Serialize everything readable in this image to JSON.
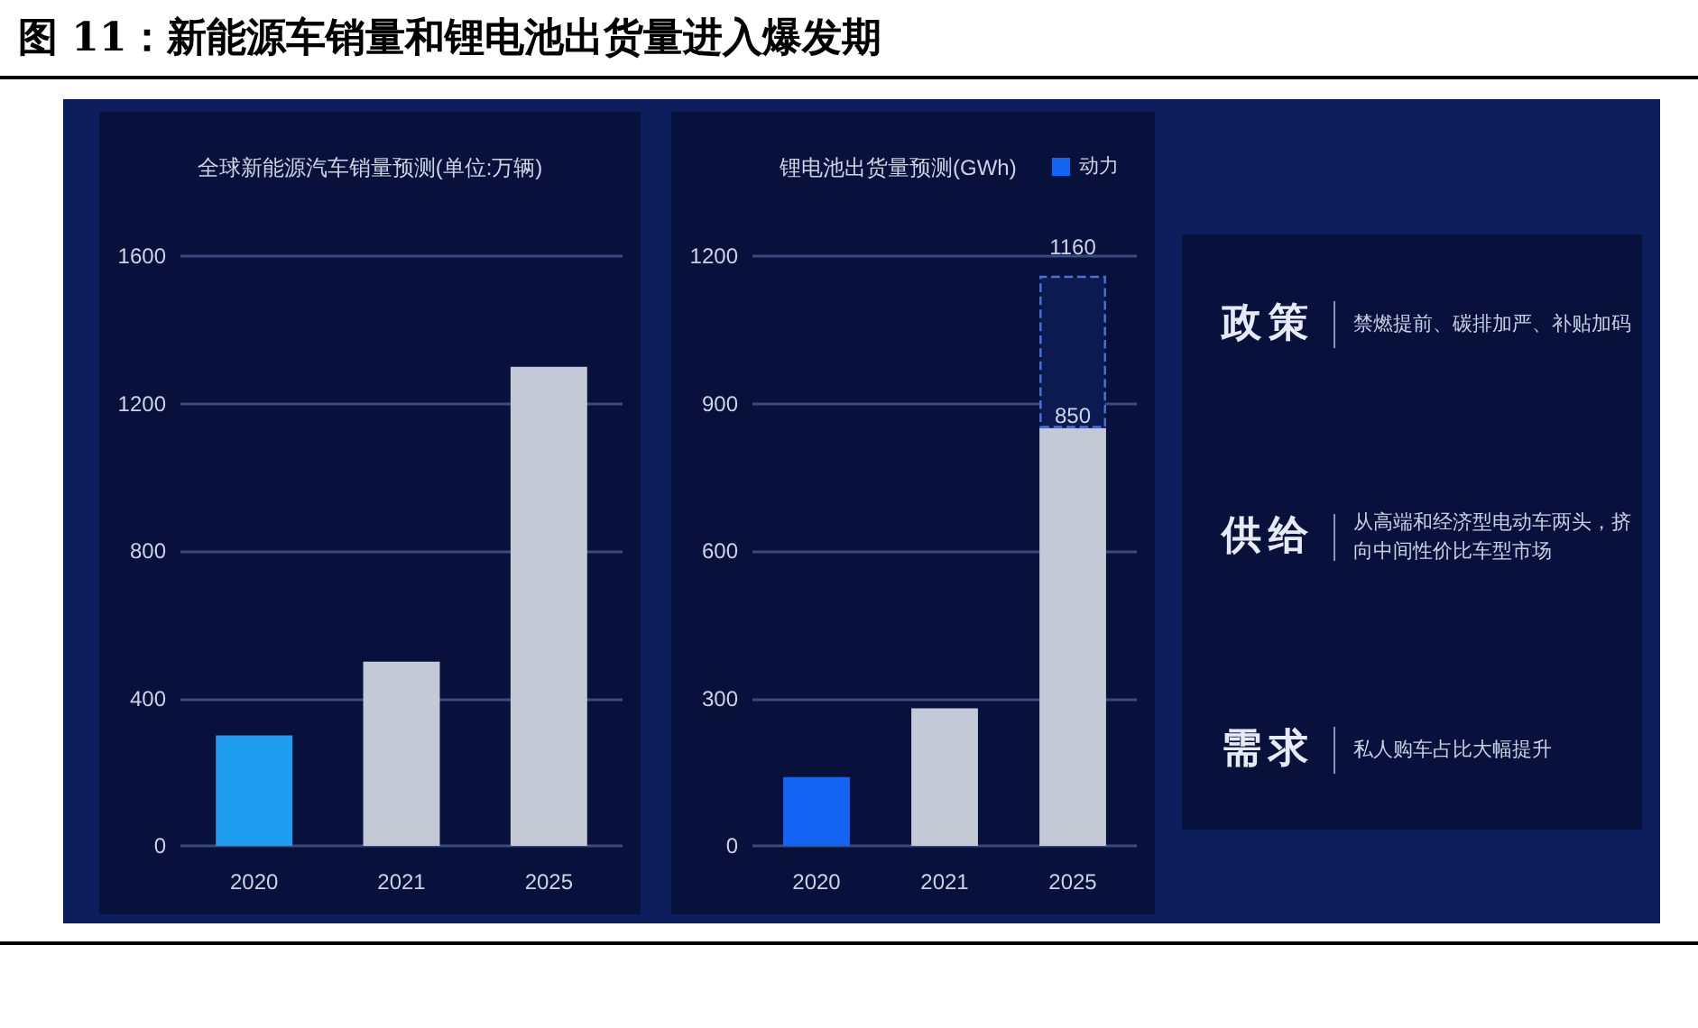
{
  "chart_data": [
    {
      "type": "bar",
      "title": "图 11：新能源车销量和锂电池出货量进入爆发期",
      "subtitle": "全球新能源汽车销量预测(单位:万辆)",
      "categories": [
        "2020",
        "2021",
        "2025"
      ],
      "values": [
        300,
        500,
        1300
      ],
      "colors": [
        "#1e9cf0",
        "#c3cad6",
        "#c3cad6"
      ],
      "ylim": [
        0,
        1600
      ],
      "yticks": [
        0,
        400,
        800,
        1200,
        1600
      ],
      "grid": "y",
      "legend": false
    },
    {
      "type": "bar",
      "subtitle": "锂电池出货量预测(GWh)",
      "categories": [
        "2020",
        "2021",
        "2025"
      ],
      "stacked": true,
      "series": [
        {
          "name": "动力",
          "color": "#1565f5",
          "colors": [
            "#1565f5",
            "#c3cad6",
            "#c3cad6"
          ],
          "values": [
            140,
            280,
            850
          ],
          "value_labels": [
            null,
            null,
            "850"
          ]
        },
        {
          "color": "#0c1a52",
          "values": [
            null,
            null,
            310
          ],
          "line_style": "dashed"
        }
      ],
      "totals": [
        null,
        null,
        "1160"
      ],
      "ylim": [
        0,
        1200
      ],
      "yticks": [
        0,
        300,
        600,
        900,
        1200
      ],
      "grid": "y",
      "legend": "top right"
    },
    {
      "type": "other",
      "annotations": [
        "政策",
        "禁燃提前、碳排加严、补贴加码",
        "供给",
        "从高端和经济型电动车两头，挤向中间性价比车型市场",
        "需求",
        "私人购车占比大幅提升"
      ]
    }
  ]
}
